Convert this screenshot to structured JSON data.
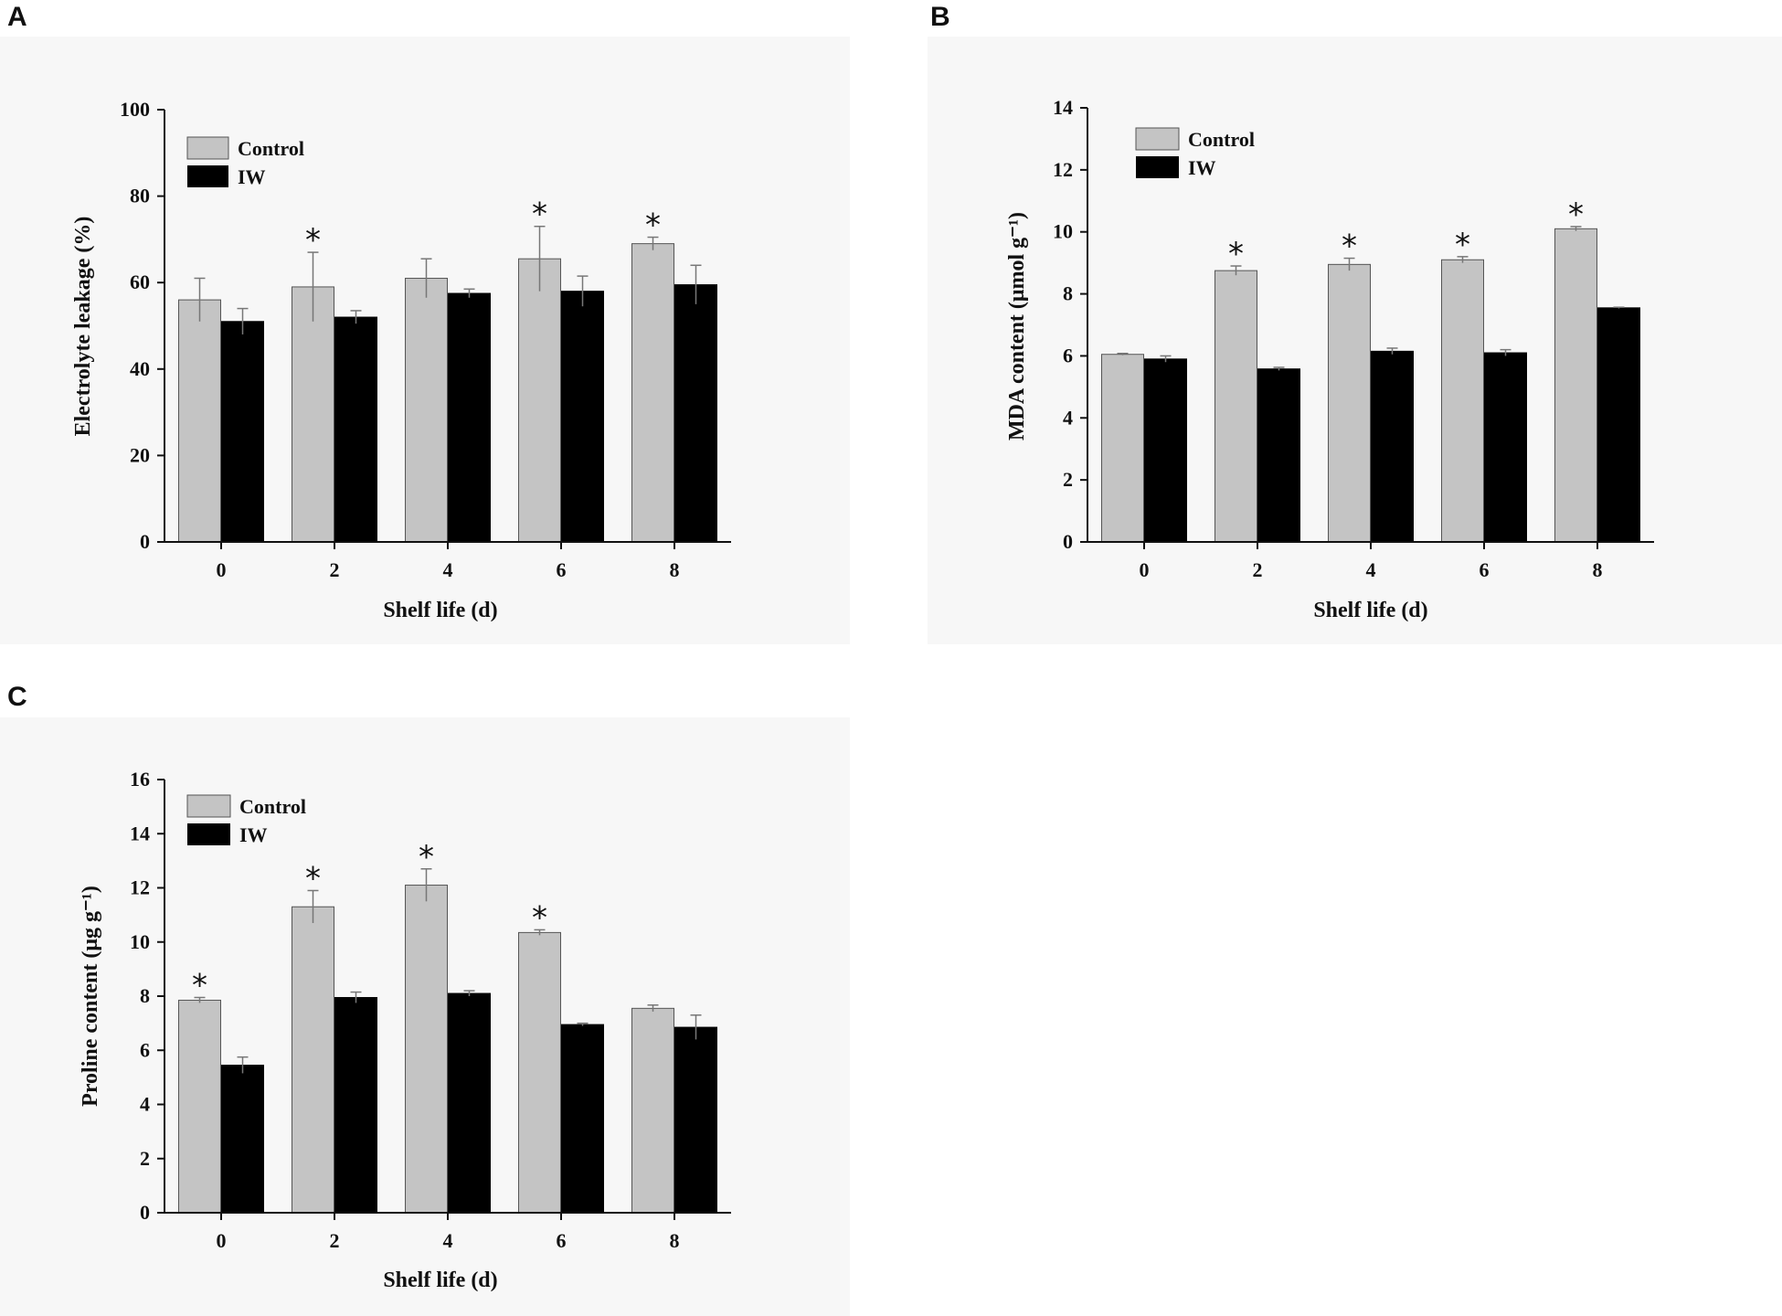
{
  "figure": {
    "colors": {
      "control": "#c4c4c4",
      "iw": "#000000",
      "axis": "#111111",
      "panel_bg": "#f7f7f7"
    },
    "legend_symbol": {
      "control": "legend-swatch-control",
      "iw": "legend-swatch-iw"
    }
  },
  "chart_data": [
    {
      "panel": "A",
      "type": "bar",
      "title": "",
      "xlabel": "Shelf  life (d)",
      "ylabel": "Electrolyte leakage  (%)",
      "categories": [
        "0",
        "2",
        "4",
        "6",
        "8"
      ],
      "ylim": [
        0,
        100
      ],
      "yticks": [
        0,
        20,
        40,
        60,
        80,
        100
      ],
      "legend_position": "top-left",
      "series": [
        {
          "name": "Control",
          "values": [
            56,
            59,
            61,
            65.5,
            69
          ],
          "errors": [
            5,
            8,
            4.5,
            7.5,
            1.5
          ],
          "significant": [
            false,
            true,
            false,
            true,
            true
          ]
        },
        {
          "name": "IW",
          "values": [
            51,
            52,
            57.5,
            58,
            59.5
          ],
          "errors": [
            3,
            1.5,
            1,
            3.5,
            4.5
          ],
          "significant": [
            false,
            false,
            false,
            false,
            false
          ]
        }
      ]
    },
    {
      "panel": "B",
      "type": "bar",
      "title": "",
      "xlabel": "Shelf  life (d)",
      "ylabel": "MDA content (μmol g⁻¹)",
      "categories": [
        "0",
        "2",
        "4",
        "6",
        "8"
      ],
      "ylim": [
        0,
        14
      ],
      "yticks": [
        0,
        2,
        4,
        6,
        8,
        10,
        12,
        14
      ],
      "legend_position": "top-left",
      "series": [
        {
          "name": "Control",
          "values": [
            6.05,
            8.75,
            8.95,
            9.1,
            10.1
          ],
          "errors": [
            0.03,
            0.15,
            0.2,
            0.1,
            0.07
          ],
          "significant": [
            false,
            true,
            true,
            true,
            true
          ]
        },
        {
          "name": "IW",
          "values": [
            5.9,
            5.58,
            6.15,
            6.1,
            7.55
          ],
          "errors": [
            0.1,
            0.05,
            0.1,
            0.1,
            0.02
          ],
          "significant": [
            false,
            false,
            false,
            false,
            false
          ]
        }
      ]
    },
    {
      "panel": "C",
      "type": "bar",
      "title": "",
      "xlabel": "Shelf  life (d)",
      "ylabel": "Proline content (μg g⁻¹)",
      "categories": [
        "0",
        "2",
        "4",
        "6",
        "8"
      ],
      "ylim": [
        0,
        16
      ],
      "yticks": [
        0,
        2,
        4,
        6,
        8,
        10,
        12,
        14,
        16
      ],
      "legend_position": "top-left",
      "series": [
        {
          "name": "Control",
          "values": [
            7.85,
            11.3,
            12.1,
            10.35,
            7.55
          ],
          "errors": [
            0.1,
            0.6,
            0.6,
            0.1,
            0.12
          ],
          "significant": [
            true,
            true,
            true,
            true,
            false
          ]
        },
        {
          "name": "IW",
          "values": [
            5.45,
            7.95,
            8.1,
            6.95,
            6.85
          ],
          "errors": [
            0.3,
            0.2,
            0.1,
            0.05,
            0.45
          ],
          "significant": [
            false,
            false,
            false,
            false,
            false
          ]
        }
      ]
    }
  ]
}
